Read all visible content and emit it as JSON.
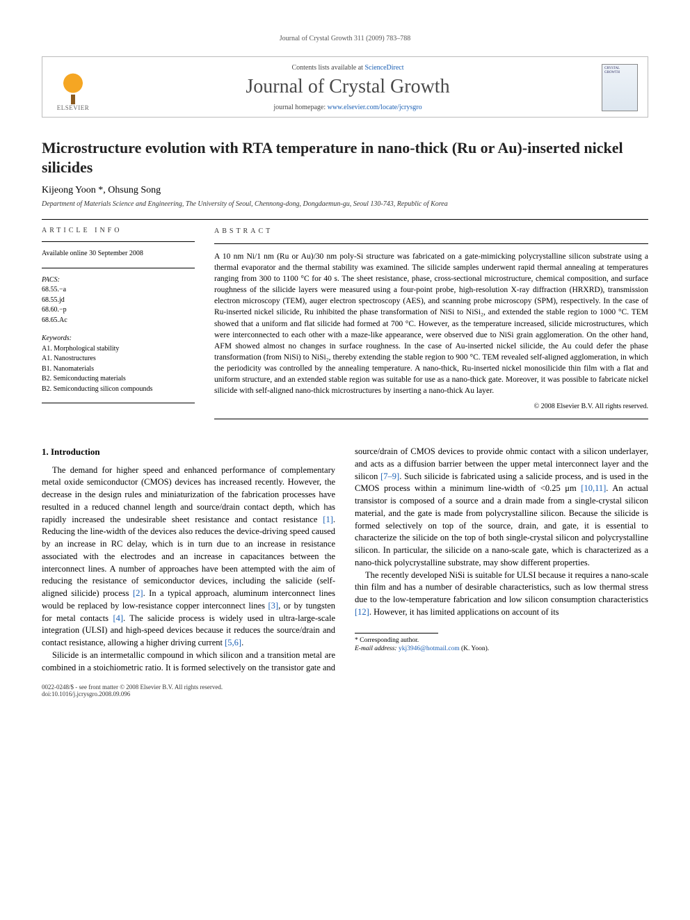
{
  "running_head": "Journal of Crystal Growth 311 (2009) 783–788",
  "masthead": {
    "publisher_name": "ELSEVIER",
    "contents_prefix": "Contents lists available at ",
    "contents_link": "ScienceDirect",
    "journal_name": "Journal of Crystal Growth",
    "homepage_prefix": "journal homepage: ",
    "homepage_url": "www.elsevier.com/locate/jcrysgro",
    "cover_text": "CRYSTAL GROWTH"
  },
  "article": {
    "title": "Microstructure evolution with RTA temperature in nano-thick (Ru or Au)-inserted nickel silicides",
    "authors_html": "Kijeong Yoon *, Ohsung Song",
    "corresponding_mark": "*",
    "affiliation": "Department of Materials Science and Engineering, The University of Seoul, Chennong-dong, Dongdaemun-gu, Seoul 130-743, Republic of Korea"
  },
  "article_info": {
    "head": "ARTICLE INFO",
    "available": "Available online 30 September 2008",
    "pacs_label": "PACS:",
    "pacs": [
      "68.55.−a",
      "68.55.jd",
      "68.60.−p",
      "68.65.Ac"
    ],
    "keywords_label": "Keywords:",
    "keywords": [
      "A1. Morphological stability",
      "A1. Nanostructures",
      "B1. Nanomaterials",
      "B2. Semiconducting materials",
      "B2. Semiconducting silicon compounds"
    ]
  },
  "abstract": {
    "head": "ABSTRACT",
    "text": "A 10 nm Ni/1 nm (Ru or Au)/30 nm poly-Si structure was fabricated on a gate-mimicking polycrystalline silicon substrate using a thermal evaporator and the thermal stability was examined. The silicide samples underwent rapid thermal annealing at temperatures ranging from 300 to 1100 °C for 40 s. The sheet resistance, phase, cross-sectional microstructure, chemical composition, and surface roughness of the silicide layers were measured using a four-point probe, high-resolution X-ray diffraction (HRXRD), transmission electron microscopy (TEM), auger electron spectroscopy (AES), and scanning probe microscopy (SPM), respectively. In the case of Ru-inserted nickel silicide, Ru inhibited the phase transformation of NiSi to NiSi₂, and extended the stable region to 1000 °C. TEM showed that a uniform and flat silicide had formed at 700 °C. However, as the temperature increased, silicide microstructures, which were interconnected to each other with a maze-like appearance, were observed due to NiSi grain agglomeration. On the other hand, AFM showed almost no changes in surface roughness. In the case of Au-inserted nickel silicide, the Au could defer the phase transformation (from NiSi) to NiSi₂, thereby extending the stable region to 900 °C. TEM revealed self-aligned agglomeration, in which the periodicity was controlled by the annealing temperature. A nano-thick, Ru-inserted nickel monosilicide thin film with a flat and uniform structure, and an extended stable region was suitable for use as a nano-thick gate. Moreover, it was possible to fabricate nickel silicide with self-aligned nano-thick microstructures by inserting a nano-thick Au layer.",
    "copyright": "© 2008 Elsevier B.V. All rights reserved."
  },
  "section1": {
    "heading": "1. Introduction",
    "p1": "The demand for higher speed and enhanced performance of complementary metal oxide semiconductor (CMOS) devices has increased recently. However, the decrease in the design rules and miniaturization of the fabrication processes have resulted in a reduced channel length and source/drain contact depth, which has rapidly increased the undesirable sheet resistance and contact resistance [1]. Reducing the line-width of the devices also reduces the device-driving speed caused by an increase in RC delay, which is in turn due to an increase in resistance associated with the electrodes and an increase in capacitances between the interconnect lines. A number of approaches have been attempted with the aim of reducing the resistance of semiconductor devices, including the salicide (self-aligned silicide) process [2]. In a typical approach, aluminum interconnect lines would be replaced by low-resistance copper interconnect lines [3], or by tungsten for metal contacts [4]. The salicide process is widely used in ultra-large-scale integration (ULSI) and high-speed devices because it reduces the source/drain and contact resistance, allowing a higher driving current [5,6].",
    "p2": "Silicide is an intermetallic compound in which silicon and a transition metal are combined in a stoichiometric ratio. It is formed selectively on the transistor gate and source/drain of CMOS devices to provide ohmic contact with a silicon underlayer, and acts as a diffusion barrier between the upper metal interconnect layer and the silicon [7–9]. Such silicide is fabricated using a salicide process, and is used in the CMOS process within a minimum line-width of <0.25 μm [10,11]. An actual transistor is composed of a source and a drain made from a single-crystal silicon material, and the gate is made from polycrystalline silicon. Because the silicide is formed selectively on top of the source, drain, and gate, it is essential to characterize the silicide on the top of both single-crystal silicon and polycrystalline silicon. In particular, the silicide on a nano-scale gate, which is characterized as a nano-thick polycrystalline substrate, may show different properties.",
    "p3": "The recently developed NiSi is suitable for ULSI because it requires a nano-scale thin film and has a number of desirable characteristics, such as low thermal stress due to the low-temperature fabrication and low silicon consumption characteristics [12]. However, it has limited applications on account of its"
  },
  "footnotes": {
    "corr": "* Corresponding author.",
    "email_label": "E-mail address:",
    "email": "ykj3946@hotmail.com",
    "email_who": "(K. Yoon)."
  },
  "footer": {
    "left_line1": "0022-0248/$ - see front matter © 2008 Elsevier B.V. All rights reserved.",
    "left_line2": "doi:10.1016/j.jcrysgro.2008.09.096"
  },
  "colors": {
    "link": "#1a5fb4",
    "text": "#000000",
    "muted": "#555555",
    "rule": "#000000"
  }
}
